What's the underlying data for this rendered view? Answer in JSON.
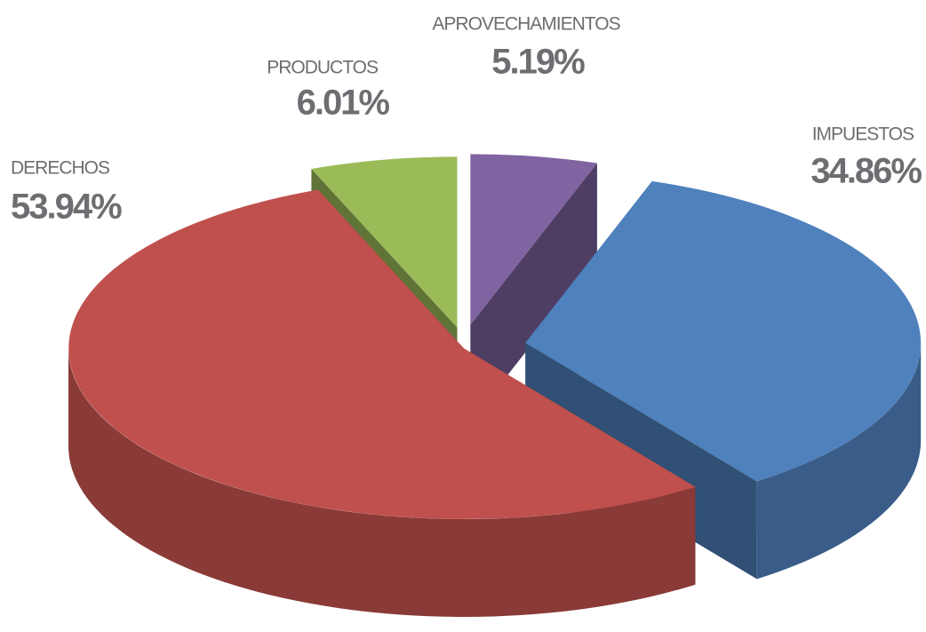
{
  "chart_data": {
    "type": "pie3d",
    "categories": [
      "APROVECHAMIENTOS",
      "IMPUESTOS",
      "DERECHOS",
      "PRODUCTOS"
    ],
    "values": [
      5.19,
      34.86,
      53.94,
      6.01
    ],
    "value_labels": [
      "5.19%",
      "34.86%",
      "53.94%",
      "6.01%"
    ],
    "colors": [
      "#8064a2",
      "#4f81bd",
      "#c0504d",
      "#9bbb59"
    ]
  }
}
